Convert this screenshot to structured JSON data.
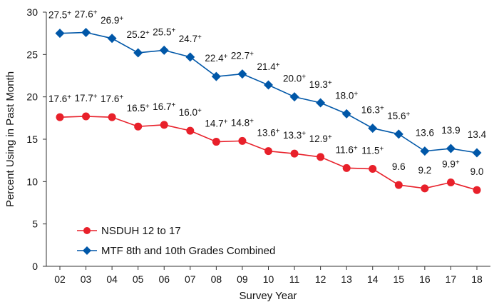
{
  "chart_data": {
    "type": "line",
    "title": "",
    "xlabel": "Survey Year",
    "ylabel": "Percent Using in Past Month",
    "ylim": [
      0,
      30
    ],
    "yticks": [
      0,
      5,
      10,
      15,
      20,
      25,
      30
    ],
    "grid": false,
    "legend_position": "bottom-left",
    "categories": [
      "02",
      "03",
      "04",
      "05",
      "06",
      "07",
      "08",
      "09",
      "10",
      "11",
      "12",
      "13",
      "14",
      "15",
      "16",
      "17",
      "18"
    ],
    "series": [
      {
        "name": "NSDUH 12 to 17",
        "color": "#e8202a",
        "marker": "circle",
        "values": [
          17.6,
          17.7,
          17.6,
          16.5,
          16.7,
          16.0,
          14.7,
          14.8,
          13.6,
          13.3,
          12.9,
          11.6,
          11.5,
          9.6,
          9.2,
          9.9,
          9.0
        ],
        "significance_marker": "+",
        "significant": [
          true,
          true,
          true,
          true,
          true,
          true,
          true,
          true,
          true,
          true,
          true,
          true,
          true,
          false,
          false,
          true,
          false
        ]
      },
      {
        "name": "MTF 8th and 10th Grades Combined",
        "color": "#0057a8",
        "marker": "diamond",
        "values": [
          27.5,
          27.6,
          26.9,
          25.2,
          25.5,
          24.7,
          22.4,
          22.7,
          21.4,
          20.0,
          19.3,
          18.0,
          16.3,
          15.6,
          13.6,
          13.9,
          13.4
        ],
        "significance_marker": "+",
        "significant": [
          true,
          true,
          true,
          true,
          true,
          true,
          true,
          true,
          true,
          true,
          true,
          true,
          true,
          true,
          false,
          false,
          false
        ]
      }
    ]
  }
}
